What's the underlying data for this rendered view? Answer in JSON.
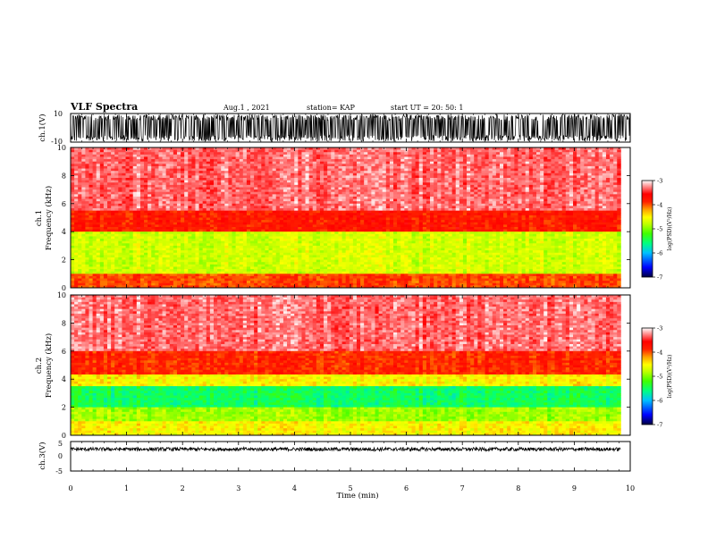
{
  "header": {
    "title": "VLF Spectra",
    "date": "Aug.1  , 2021",
    "station": "station= KAP",
    "start": "start  UT  =   20: 50: 1"
  },
  "chart_data": [
    {
      "type": "line",
      "panel": "ch1-waveform",
      "ylabel": "ch.1(V)",
      "ylim": [
        -10,
        10
      ],
      "yticks": [
        "10",
        "-10"
      ],
      "xlim": [
        0,
        10
      ],
      "description": "dense noise waveform",
      "amplitude": [
        -10,
        10
      ]
    },
    {
      "type": "heatmap",
      "panel": "ch1-spectrogram",
      "ylabel": "ch.1\nFrequency  (kHz)",
      "ylim": [
        0,
        10
      ],
      "yticks": [
        "0",
        "2",
        "4",
        "6",
        "8",
        "10"
      ],
      "xlim": [
        0,
        9.83
      ],
      "zlabel": "log(PSD)(V²/Hz)",
      "zticks": [
        "-3",
        "-4",
        "-5",
        "-6",
        "-7"
      ],
      "bands_khz": [
        {
          "from": 0.0,
          "to": 1.0,
          "level": -4.0
        },
        {
          "from": 1.0,
          "to": 4.0,
          "level": -4.8
        },
        {
          "from": 4.0,
          "to": 5.5,
          "level": -3.8
        },
        {
          "from": 5.5,
          "to": 10.0,
          "level": -3.3
        }
      ]
    },
    {
      "type": "heatmap",
      "panel": "ch2-spectrogram",
      "ylabel": "ch.2\nFrequency  (kHz)",
      "ylim": [
        0,
        10
      ],
      "yticks": [
        "0",
        "2",
        "4",
        "6",
        "8",
        "10"
      ],
      "xlim": [
        0,
        9.83
      ],
      "zlabel": "log(PSD)(V²/Hz)",
      "zticks": [
        "-3",
        "-4",
        "-5",
        "-6",
        "-7"
      ],
      "bands_khz": [
        {
          "from": 0.0,
          "to": 1.0,
          "level": -4.6
        },
        {
          "from": 1.0,
          "to": 2.0,
          "level": -5.0
        },
        {
          "from": 2.0,
          "to": 3.5,
          "level": -5.6
        },
        {
          "from": 3.5,
          "to": 4.3,
          "level": -4.6
        },
        {
          "from": 4.3,
          "to": 6.0,
          "level": -3.9
        },
        {
          "from": 6.0,
          "to": 10.0,
          "level": -3.3
        }
      ]
    },
    {
      "type": "line",
      "panel": "ch3-waveform",
      "ylabel": "ch.3(V)",
      "ylim": [
        -5,
        5
      ],
      "yticks": [
        "5",
        "0",
        "-5"
      ],
      "xlim": [
        0,
        10
      ],
      "description": "narrow band noise around constant offset",
      "center": 0,
      "amplitude": [
        -0.6,
        0.6
      ]
    }
  ],
  "xaxis": {
    "label": "Time  (min)",
    "ticks": [
      "0",
      "1",
      "2",
      "3",
      "4",
      "5",
      "6",
      "7",
      "8",
      "9",
      "10"
    ],
    "xlim": [
      0,
      10
    ]
  },
  "colors": {
    "psd_scale": [
      "#000080",
      "#0000ff",
      "#00c0ff",
      "#00ff80",
      "#40ff00",
      "#c0ff00",
      "#ffff00",
      "#ffc000",
      "#ff6000",
      "#ff0000",
      "#ff8080",
      "#ffffff"
    ],
    "waveform": "#000000"
  }
}
